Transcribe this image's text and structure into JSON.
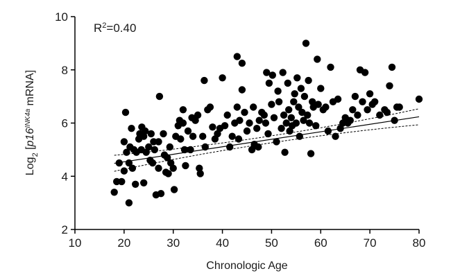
{
  "chart_data": {
    "type": "scatter",
    "xlabel": "Chronologic Age",
    "ylabel_parts": {
      "prefix": "Log",
      "sub": "2",
      "open": " [",
      "gene": "p16",
      "sup": "INK4a",
      "close": " mRNA]"
    },
    "annotation": {
      "prefix": "R",
      "sup": "2",
      "rest": "=0.40"
    },
    "xlim": [
      10,
      80
    ],
    "ylim": [
      2,
      10
    ],
    "xticks": [
      10,
      20,
      30,
      40,
      50,
      60,
      70,
      80
    ],
    "yticks": [
      2,
      4,
      6,
      8,
      10
    ],
    "grid": false,
    "marker_color": "#000000",
    "regression": {
      "slope": 0.0282,
      "intercept": 3.98,
      "ci_halfwidth_at_ends": 0.3,
      "ci_halfwidth_at_mean": 0.13,
      "x_range": [
        18,
        80
      ]
    },
    "points": [
      [
        18,
        3.4
      ],
      [
        18.5,
        3.8
      ],
      [
        19,
        4.5
      ],
      [
        19.5,
        3.8
      ],
      [
        20,
        4.2
      ],
      [
        20,
        5.3
      ],
      [
        20.3,
        6.4
      ],
      [
        20.5,
        4.9
      ],
      [
        21,
        3.0
      ],
      [
        21,
        4.5
      ],
      [
        21.2,
        5.1
      ],
      [
        21.5,
        5.8
      ],
      [
        21.7,
        4.3
      ],
      [
        22,
        5.0
      ],
      [
        22.3,
        3.7
      ],
      [
        22.5,
        4.9
      ],
      [
        23,
        5.4
      ],
      [
        23.2,
        5.6
      ],
      [
        23.5,
        5.0
      ],
      [
        23.6,
        5.85
      ],
      [
        24,
        3.75
      ],
      [
        24,
        5.5
      ],
      [
        24.3,
        5.7
      ],
      [
        24.5,
        4.9
      ],
      [
        25,
        5.1
      ],
      [
        25.3,
        4.6
      ],
      [
        25.5,
        5.6
      ],
      [
        25.8,
        4.5
      ],
      [
        26,
        5.3
      ],
      [
        26.2,
        5.0
      ],
      [
        26.5,
        3.3
      ],
      [
        27,
        5.3
      ],
      [
        27,
        4.3
      ],
      [
        27.2,
        7.0
      ],
      [
        27.5,
        3.35
      ],
      [
        28,
        5.6
      ],
      [
        28.2,
        4.8
      ],
      [
        28.5,
        4.15
      ],
      [
        28.8,
        4.7
      ],
      [
        29,
        4.1
      ],
      [
        29.3,
        5.1
      ],
      [
        29.5,
        4.5
      ],
      [
        30,
        4.3
      ],
      [
        30.2,
        3.5
      ],
      [
        30.5,
        5.5
      ],
      [
        31,
        5.9
      ],
      [
        31.3,
        6.1
      ],
      [
        31.5,
        5.4
      ],
      [
        32,
        6.5
      ],
      [
        32,
        6.0
      ],
      [
        32.3,
        5.0
      ],
      [
        32.5,
        4.4
      ],
      [
        33,
        5.7
      ],
      [
        33.5,
        5.0
      ],
      [
        33.8,
        6.2
      ],
      [
        34,
        5.5
      ],
      [
        34.5,
        6.1
      ],
      [
        35,
        6.3
      ],
      [
        35.3,
        4.3
      ],
      [
        35.5,
        4.1
      ],
      [
        36,
        5.5
      ],
      [
        36.3,
        7.6
      ],
      [
        36.5,
        5.1
      ],
      [
        37,
        6.5
      ],
      [
        37.5,
        6.6
      ],
      [
        38,
        5.85
      ],
      [
        38.5,
        5.4
      ],
      [
        39,
        5.6
      ],
      [
        39.5,
        5.8
      ],
      [
        40,
        7.7
      ],
      [
        40.5,
        5.9
      ],
      [
        41,
        6.3
      ],
      [
        41.5,
        5.1
      ],
      [
        42,
        5.5
      ],
      [
        42.5,
        6.0
      ],
      [
        43,
        8.5
      ],
      [
        43,
        6.6
      ],
      [
        43.3,
        5.4
      ],
      [
        43.5,
        6.1
      ],
      [
        44,
        8.25
      ],
      [
        44,
        7.25
      ],
      [
        44.5,
        6.4
      ],
      [
        45,
        5.7
      ],
      [
        45.5,
        6.0
      ],
      [
        46,
        5.0
      ],
      [
        46.3,
        6.6
      ],
      [
        46.5,
        5.2
      ],
      [
        47,
        5.8
      ],
      [
        47.3,
        5.1
      ],
      [
        47.5,
        6.1
      ],
      [
        48,
        6.4
      ],
      [
        48.5,
        6.3
      ],
      [
        48.8,
        6.0
      ],
      [
        49,
        7.9
      ],
      [
        49.3,
        5.6
      ],
      [
        49.5,
        7.5
      ],
      [
        50,
        6.7
      ],
      [
        50.2,
        7.8
      ],
      [
        50.5,
        6.2
      ],
      [
        51,
        5.3
      ],
      [
        51.3,
        7.2
      ],
      [
        51.5,
        6.8
      ],
      [
        52,
        5.8
      ],
      [
        52.3,
        7.9
      ],
      [
        52.5,
        6.3
      ],
      [
        52.7,
        4.9
      ],
      [
        53,
        6.0
      ],
      [
        53.3,
        7.5
      ],
      [
        53.5,
        6.5
      ],
      [
        53.7,
        5.7
      ],
      [
        54,
        6.2
      ],
      [
        54.2,
        5.9
      ],
      [
        54.5,
        6.8
      ],
      [
        54.7,
        7.1
      ],
      [
        55,
        6.0
      ],
      [
        55.2,
        7.7
      ],
      [
        55.5,
        6.6
      ],
      [
        55.7,
        5.5
      ],
      [
        56,
        7.3
      ],
      [
        56.2,
        6.4
      ],
      [
        56.5,
        6.1
      ],
      [
        56.7,
        7.0
      ],
      [
        57,
        9.0
      ],
      [
        57.3,
        6.3
      ],
      [
        57.5,
        7.6
      ],
      [
        57.7,
        6.0
      ],
      [
        58,
        4.85
      ],
      [
        58.3,
        6.8
      ],
      [
        58.5,
        6.6
      ],
      [
        59,
        5.9
      ],
      [
        59.3,
        8.4
      ],
      [
        59.5,
        6.7
      ],
      [
        60,
        7.3
      ],
      [
        60.5,
        6.5
      ],
      [
        61,
        6.6
      ],
      [
        61.5,
        5.7
      ],
      [
        62,
        8.1
      ],
      [
        62.5,
        6.8
      ],
      [
        63,
        5.5
      ],
      [
        63.5,
        6.9
      ],
      [
        64,
        5.8
      ],
      [
        64.5,
        6.0
      ],
      [
        65,
        6.2
      ],
      [
        65.5,
        6.0
      ],
      [
        66,
        6.1
      ],
      [
        66.5,
        6.5
      ],
      [
        67,
        7.0
      ],
      [
        67.5,
        6.3
      ],
      [
        68,
        8.0
      ],
      [
        68.5,
        6.8
      ],
      [
        69,
        7.9
      ],
      [
        69.5,
        6.5
      ],
      [
        70,
        7.1
      ],
      [
        70.5,
        6.7
      ],
      [
        71,
        6.8
      ],
      [
        72,
        6.3
      ],
      [
        73,
        6.5
      ],
      [
        73.5,
        6.4
      ],
      [
        74,
        7.4
      ],
      [
        74.5,
        8.1
      ],
      [
        75,
        6.1
      ],
      [
        75.5,
        6.6
      ],
      [
        76,
        6.6
      ],
      [
        80,
        6.9
      ]
    ]
  }
}
